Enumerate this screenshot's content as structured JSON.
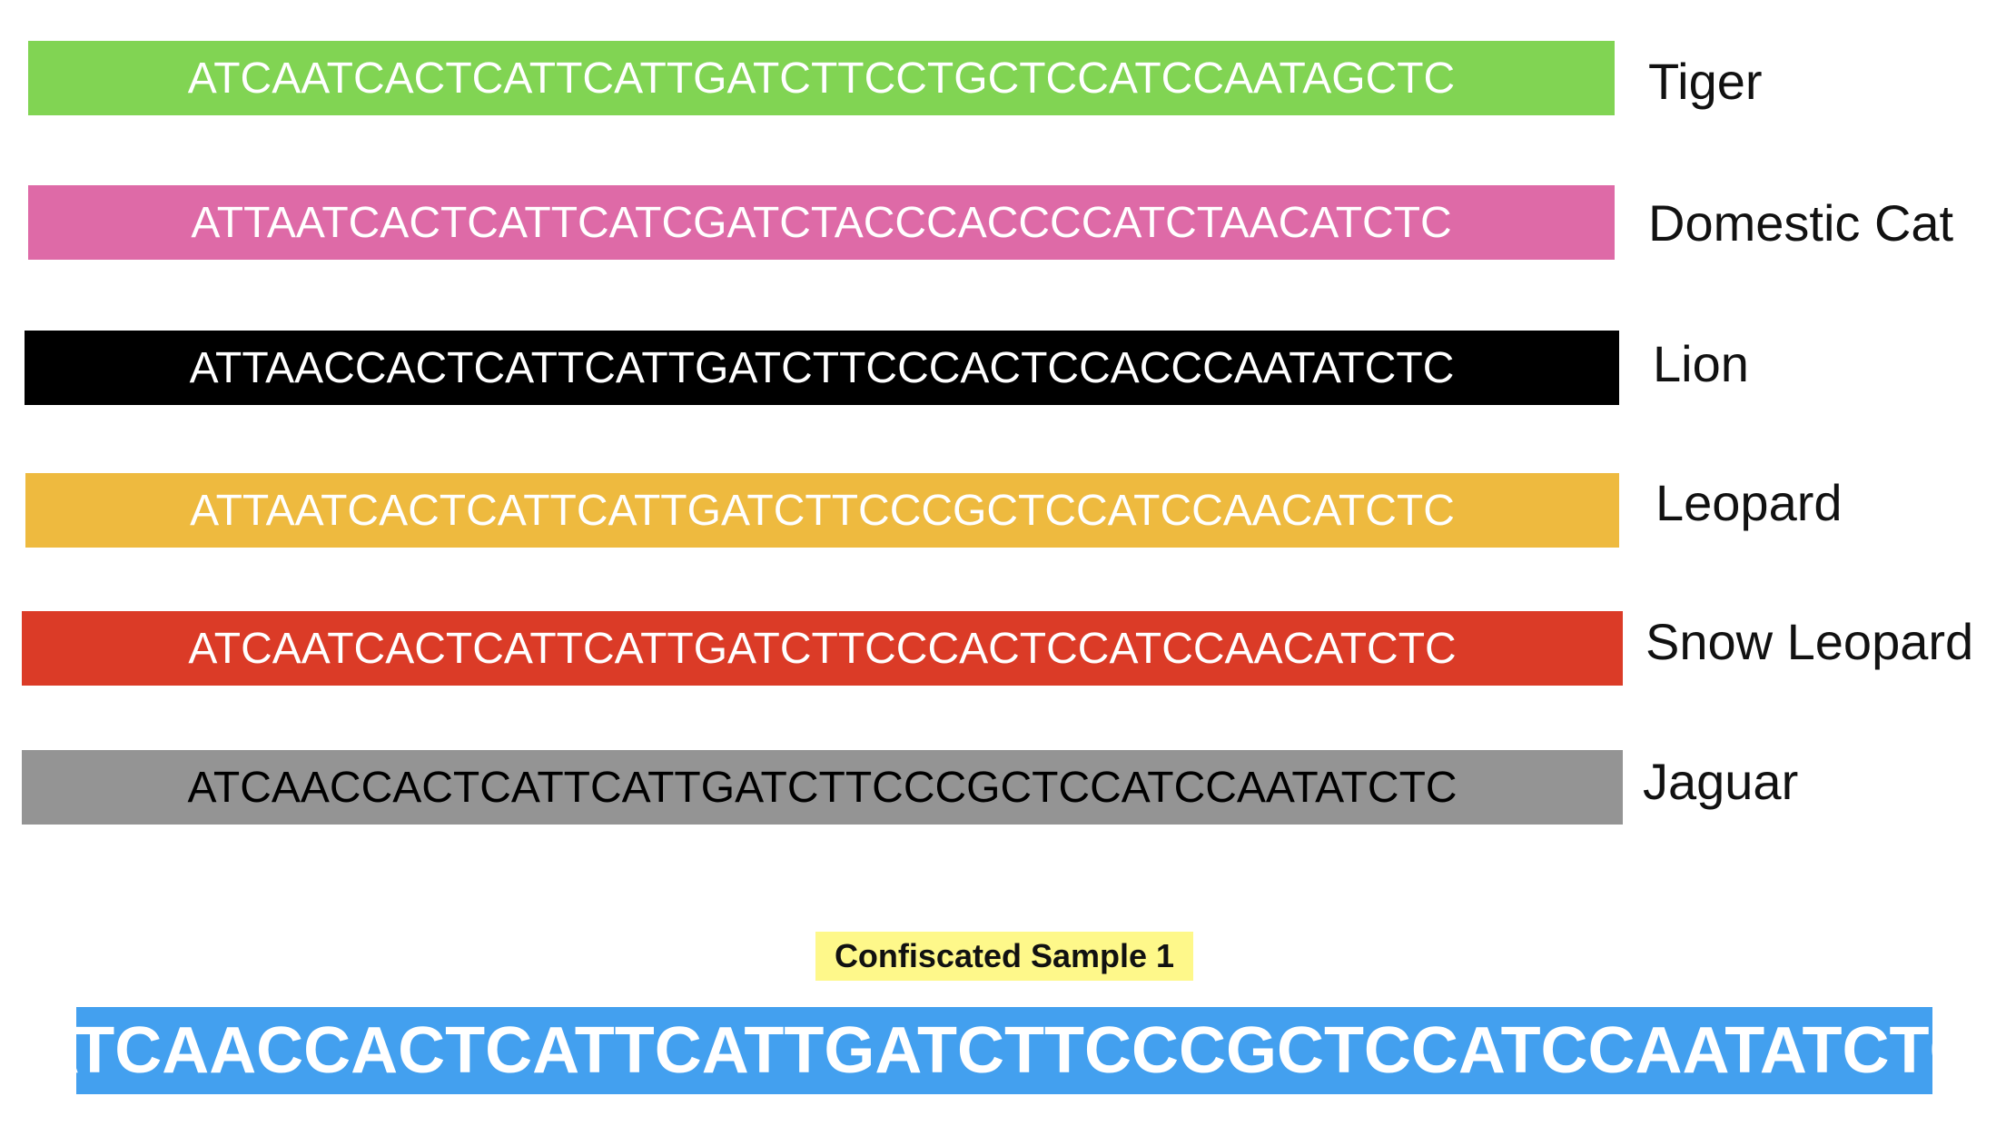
{
  "species": [
    {
      "name": "Tiger",
      "sequence": "ATCAATCACTCATTCATTGATCTTCCTGCTCCATCCAATAGCTC",
      "bar_color": "#81d453",
      "text_color": "#ffffff"
    },
    {
      "name": "Domestic Cat",
      "sequence": "ATTAATCACTCATTCATCGATCTACCCACCCCATCTAACATCTC",
      "bar_color": "#de6aa7",
      "text_color": "#ffffff"
    },
    {
      "name": "Lion",
      "sequence": "ATTAACCACTCATTCATTGATCTTCCCACTCCACCCAATATCTC",
      "bar_color": "#000000",
      "text_color": "#ffffff"
    },
    {
      "name": "Leopard",
      "sequence": "ATTAATCACTCATTCATTGATCTTCCCGCTCCATCCAACATCTC",
      "bar_color": "#eeba3f",
      "text_color": "#ffffff"
    },
    {
      "name": "Snow Leopard",
      "sequence": "ATCAATCACTCATTCATTGATCTTCCCACTCCATCCAACATCTC",
      "bar_color": "#db3b27",
      "text_color": "#ffffff"
    },
    {
      "name": "Jaguar",
      "sequence": "ATCAACCACTCATTCATTGATCTTCCCGCTCCATCCAATATCTC",
      "bar_color": "#949494",
      "text_color": "#000000"
    }
  ],
  "sample": {
    "label": "Confiscated Sample 1",
    "label_bg_color": "#fef88a",
    "sequence": "ATCAACCACTCATTCATTGATCTTCCCGCTCCATCCAATATCTC",
    "seq_bg_color": "#43a0ef"
  }
}
